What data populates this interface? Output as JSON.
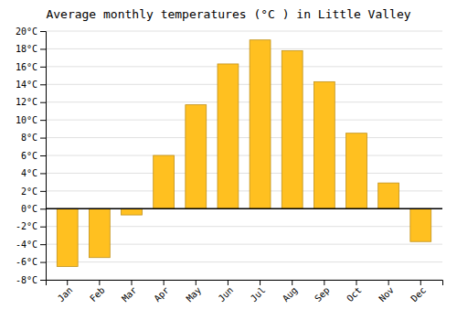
{
  "chart_data": {
    "type": "bar",
    "title": "Average monthly temperatures (°C ) in Little Valley",
    "categories": [
      "Jan",
      "Feb",
      "Mar",
      "Apr",
      "May",
      "Jun",
      "Jul",
      "Aug",
      "Sep",
      "Oct",
      "Nov",
      "Dec"
    ],
    "values": [
      -6.5,
      -5.5,
      -0.7,
      6.0,
      11.7,
      16.3,
      19.0,
      17.8,
      14.3,
      8.5,
      2.9,
      -3.7
    ],
    "color": "#FFC020",
    "ylim": [
      -8,
      20
    ],
    "yticks": [
      {
        "value": -8,
        "label": "-8°C"
      },
      {
        "value": -6,
        "label": "-6°C"
      },
      {
        "value": -4,
        "label": "-4°C"
      },
      {
        "value": -2,
        "label": "-2°C"
      },
      {
        "value": 0,
        "label": "0°C"
      },
      {
        "value": 2,
        "label": "2°C"
      },
      {
        "value": 4,
        "label": "4°C"
      },
      {
        "value": 6,
        "label": "6°C"
      },
      {
        "value": 8,
        "label": "8°C"
      },
      {
        "value": 10,
        "label": "10°C"
      },
      {
        "value": 12,
        "label": "12°C"
      },
      {
        "value": 14,
        "label": "14°C"
      },
      {
        "value": 16,
        "label": "16°C"
      },
      {
        "value": 18,
        "label": "18°C"
      },
      {
        "value": 20,
        "label": "20°C"
      }
    ],
    "grid": true
  }
}
